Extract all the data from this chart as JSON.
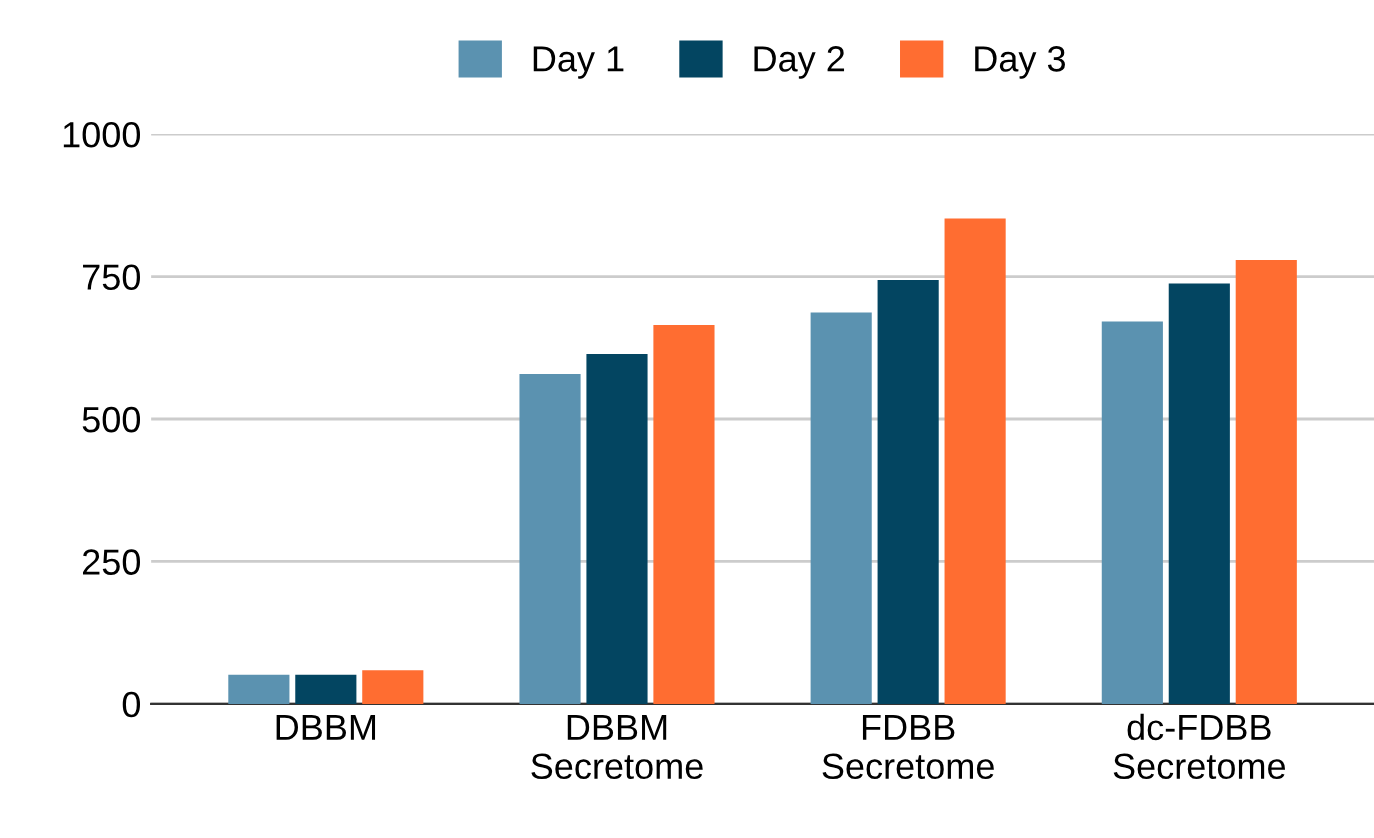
{
  "chart_data": {
    "type": "bar",
    "categories": [
      "DBBM",
      "DBBM\nSecretome",
      "FDBB\nSecretome",
      "dc-FDBB\nSecretome"
    ],
    "series": [
      {
        "name": "Day 1",
        "color": "#5b92b0",
        "values": [
          51,
          579,
          687,
          671
        ]
      },
      {
        "name": "Day 2",
        "color": "#034561",
        "values": [
          51,
          614,
          744,
          738
        ]
      },
      {
        "name": "Day 3",
        "color": "#ff6d31",
        "values": [
          59,
          665,
          852,
          779
        ]
      }
    ],
    "ylim": [
      0,
      1000
    ],
    "yticks": [
      0,
      250,
      500,
      750,
      1000
    ],
    "grid": "y",
    "legend": "top"
  }
}
